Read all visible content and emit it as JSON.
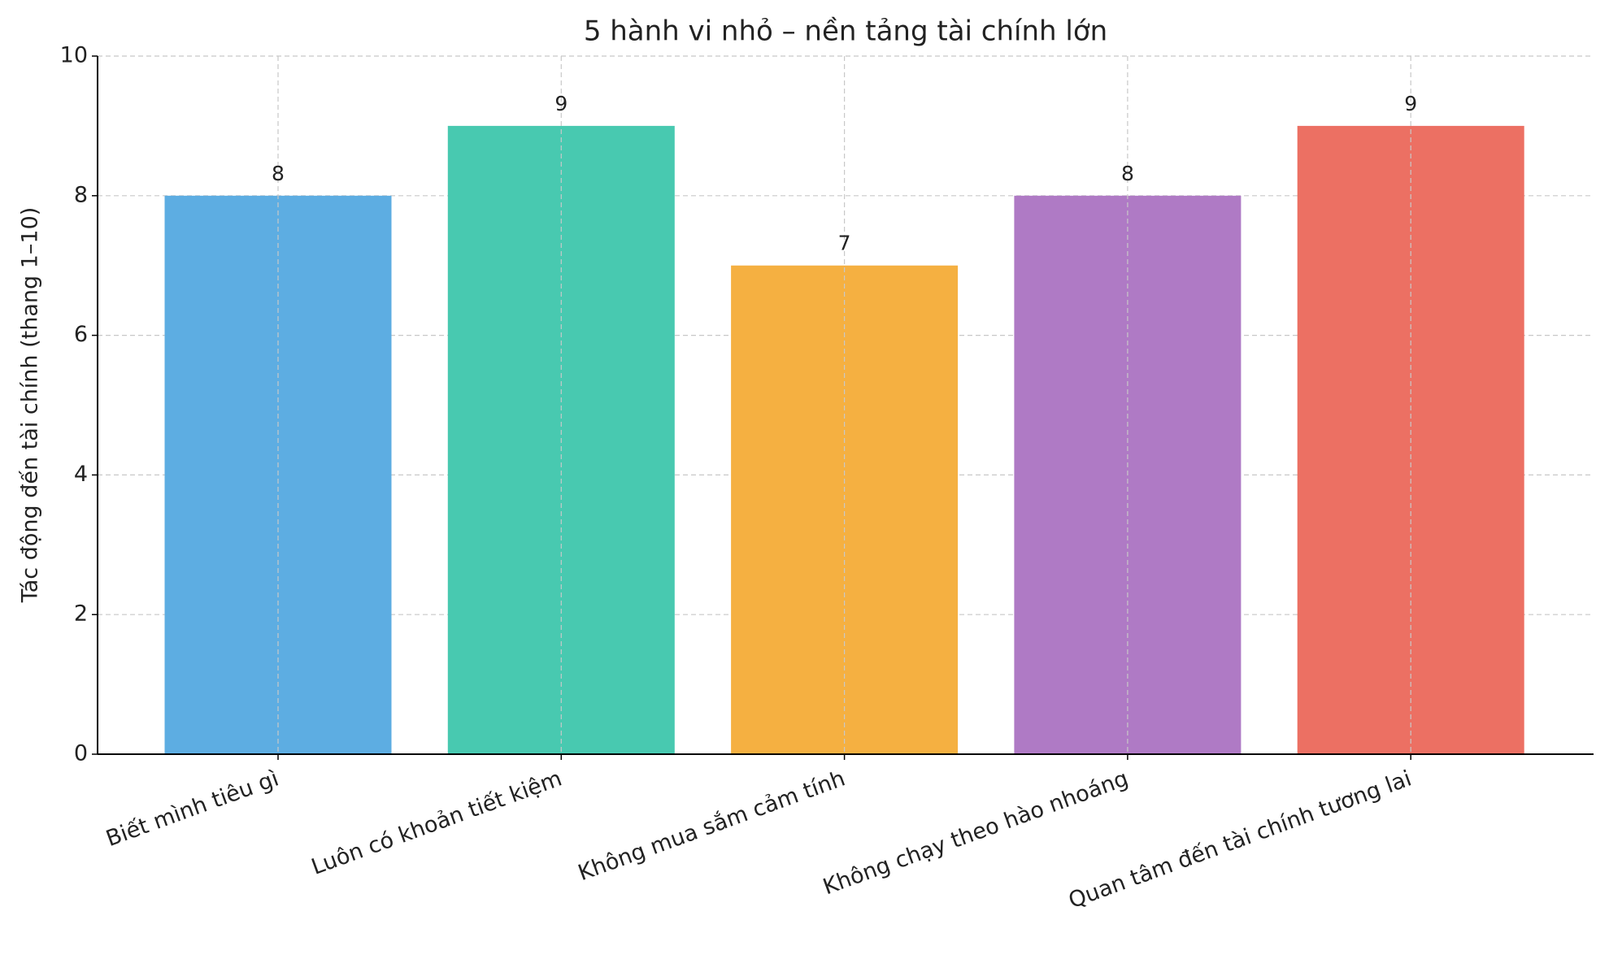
{
  "chart_data": {
    "type": "bar",
    "title": "5 hành vi nhỏ – nền tảng tài chính lớn",
    "y_label": "Tác động đến tài chính (thang 1–10)",
    "categories": [
      "Biết mình tiêu gì",
      "Luôn có khoản tiết kiệm",
      "Không mua sắm cảm tính",
      "Không chạy theo hào nhoáng",
      "Quan tâm đến tài chính tương lai"
    ],
    "values": [
      8,
      9,
      7,
      8,
      9
    ],
    "colors": [
      "#5DADE2",
      "#48C9B0",
      "#F5B041",
      "#AF7AC5",
      "#EC7063"
    ],
    "ylim": [
      0,
      10
    ],
    "yticks": [
      0,
      2,
      4,
      6,
      8,
      10
    ],
    "grid": true
  }
}
